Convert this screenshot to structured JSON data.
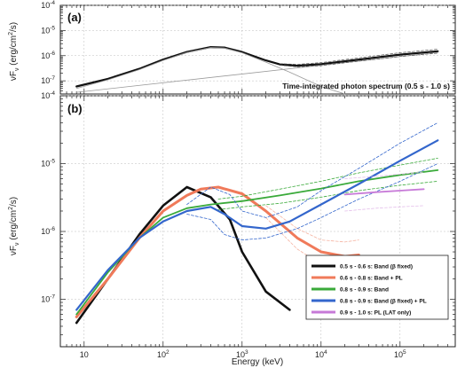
{
  "chart_data": [
    {
      "panel_label": "(a)",
      "type": "line",
      "title": "",
      "annotation": "Time-integrated photon spectrum (0.5 s - 1.0 s)",
      "xscale": "log",
      "yscale": "log",
      "xlim": [
        5,
        500000
      ],
      "ylim": [
        3e-08,
        0.0001
      ],
      "ylabel_parts": [
        "νF",
        "ν",
        " (erg/cm",
        "2",
        "/s)"
      ],
      "y_ticks": [
        {
          "value": 1e-07,
          "base": "10",
          "exp": "-7"
        },
        {
          "value": 1e-06,
          "base": "10",
          "exp": "-6"
        },
        {
          "value": 1e-05,
          "base": "10",
          "exp": "-5"
        },
        {
          "value": 0.0001,
          "base": "10",
          "exp": "-4"
        }
      ],
      "series": [
        {
          "role": "model",
          "color": "#111111",
          "width": 2.2,
          "dashed": false,
          "x": [
            8,
            20,
            50,
            100,
            200,
            400,
            600,
            1000,
            2000,
            3000,
            5000,
            10000,
            20000,
            50000,
            100000,
            300000
          ],
          "y": [
            6e-08,
            1.2e-07,
            3e-07,
            7e-07,
            1.4e-06,
            2.2e-06,
            2.1e-06,
            1.4e-06,
            6.5e-07,
            4.5e-07,
            4e-07,
            4.6e-07,
            6e-07,
            8.5e-07,
            1.1e-06,
            1.5e-06
          ]
        },
        {
          "role": "component",
          "color": "#9a9a9a",
          "width": 0.8,
          "dashed": false,
          "x": [
            8,
            20,
            50,
            100,
            200,
            400,
            600,
            1000,
            2000,
            4000,
            10000,
            20000
          ],
          "y": [
            5e-08,
            1.1e-07,
            2.8e-07,
            6.5e-07,
            1.35e-06,
            2.1e-06,
            2e-06,
            1.3e-06,
            5.5e-07,
            2.2e-07,
            6e-08,
            3e-08
          ]
        },
        {
          "role": "component",
          "color": "#9a9a9a",
          "width": 0.8,
          "dashed": false,
          "x": [
            8,
            300000
          ],
          "y": [
            3.5e-08,
            1.35e-06
          ]
        },
        {
          "role": "confidence",
          "color": "#555555",
          "width": 0.7,
          "dashed": true,
          "x": [
            3000,
            5000,
            10000,
            20000,
            50000,
            100000,
            300000
          ],
          "y": [
            4.8e-07,
            4.5e-07,
            5.3e-07,
            7e-07,
            1e-06,
            1.3e-06,
            1.8e-06
          ]
        },
        {
          "role": "confidence",
          "color": "#555555",
          "width": 0.7,
          "dashed": true,
          "x": [
            3000,
            5000,
            10000,
            20000,
            50000,
            100000,
            300000
          ],
          "y": [
            4.2e-07,
            3.6e-07,
            4e-07,
            5.2e-07,
            7.2e-07,
            9.3e-07,
            1.25e-06
          ]
        }
      ]
    },
    {
      "panel_label": "(b)",
      "type": "line",
      "title": "",
      "xlabel": "Energy (keV)",
      "xscale": "log",
      "yscale": "log",
      "xlim": [
        5,
        500000
      ],
      "ylim": [
        2e-08,
        0.0001
      ],
      "ylabel_parts": [
        "νF",
        "ν",
        " (erg/cm",
        "2",
        "/s)"
      ],
      "x_ticks": [
        {
          "value": 10,
          "base": "10",
          "exp": ""
        },
        {
          "value": 100,
          "base": "10",
          "exp": "2"
        },
        {
          "value": 1000,
          "base": "10",
          "exp": "3"
        },
        {
          "value": 10000,
          "base": "10",
          "exp": "4"
        },
        {
          "value": 100000,
          "base": "10",
          "exp": "5"
        }
      ],
      "y_ticks": [
        {
          "value": 1e-07,
          "base": "10",
          "exp": "-7"
        },
        {
          "value": 1e-06,
          "base": "10",
          "exp": "-6"
        },
        {
          "value": 1e-05,
          "base": "10",
          "exp": "-5"
        },
        {
          "value": 0.0001,
          "base": "10",
          "exp": "-4"
        }
      ],
      "legend": {
        "placement": "bottom-right",
        "entries": [
          {
            "label": "0.5 s - 0.6 s: Band (β fixed)",
            "color": "#111111"
          },
          {
            "label": "0.6 s - 0.8 s: Band + PL",
            "color": "#f07a5a"
          },
          {
            "label": "0.8 s - 0.9 s: Band",
            "color": "#3aaa3a"
          },
          {
            "label": "0.8 s - 0.9 s: Band (β fixed) + PL",
            "color": "#3366cc"
          },
          {
            "label": "0.9 s - 1.0 s: PL (LAT only)",
            "color": "#c77ad8"
          }
        ]
      },
      "series": [
        {
          "legend_index": 0,
          "color": "#111111",
          "width": 2.6,
          "dashed": false,
          "x": [
            8,
            20,
            50,
            100,
            200,
            400,
            700,
            1000,
            2000,
            4000
          ],
          "y": [
            4.5e-08,
            2e-07,
            9e-07,
            2.4e-06,
            4.5e-06,
            3.2e-06,
            1.5e-06,
            5e-07,
            1.3e-07,
            7e-08
          ]
        },
        {
          "legend_index": 1,
          "color": "#f07a5a",
          "width": 3.0,
          "dashed": false,
          "x": [
            8,
            20,
            50,
            100,
            200,
            300,
            500,
            1000,
            2000,
            5000,
            10000,
            20000,
            30000
          ],
          "y": [
            5.5e-08,
            2e-07,
            8e-07,
            2e-06,
            3.4e-06,
            4.2e-06,
            4.5e-06,
            3.6e-06,
            2e-06,
            8e-07,
            5e-07,
            4.3e-07,
            4.5e-07
          ]
        },
        {
          "legend_index": 1,
          "color": "#f5b3a1",
          "width": 0.8,
          "dashed": true,
          "x": [
            2000,
            5000,
            10000,
            20000,
            30000
          ],
          "y": [
            2.4e-06,
            1.1e-06,
            7.5e-07,
            7e-07,
            7.5e-07
          ]
        },
        {
          "legend_index": 1,
          "color": "#f5b3a1",
          "width": 0.8,
          "dashed": true,
          "x": [
            2000,
            5000,
            10000,
            20000,
            30000
          ],
          "y": [
            1.6e-06,
            5.5e-07,
            3.3e-07,
            2.7e-07,
            2.7e-07
          ]
        },
        {
          "legend_index": 2,
          "color": "#3aaa3a",
          "width": 1.8,
          "dashed": false,
          "x": [
            8,
            20,
            50,
            100,
            200,
            400,
            1000,
            3000,
            10000,
            30000,
            100000,
            300000
          ],
          "y": [
            6e-08,
            2.5e-07,
            8e-07,
            1.6e-06,
            2.2e-06,
            2.5e-06,
            2.8e-06,
            3.4e-06,
            4.3e-06,
            5.5e-06,
            6.8e-06,
            8e-06
          ]
        },
        {
          "legend_index": 2,
          "color": "#3aaa3a",
          "width": 0.8,
          "dashed": true,
          "x": [
            500,
            1000,
            3000,
            10000,
            30000,
            100000,
            300000
          ],
          "y": [
            3e-06,
            3.3e-06,
            4.2e-06,
            5.5e-06,
            7.3e-06,
            9.5e-06,
            1.2e-05
          ]
        },
        {
          "legend_index": 2,
          "color": "#3aaa3a",
          "width": 0.8,
          "dashed": true,
          "x": [
            500,
            1000,
            3000,
            10000,
            30000,
            100000,
            300000
          ],
          "y": [
            2.1e-06,
            2.3e-06,
            2.6e-06,
            3.2e-06,
            4e-06,
            4.8e-06,
            5.5e-06
          ]
        },
        {
          "legend_index": 3,
          "color": "#3366cc",
          "width": 2.2,
          "dashed": false,
          "x": [
            8,
            20,
            50,
            100,
            200,
            400,
            600,
            1000,
            2000,
            4000,
            10000,
            30000,
            100000,
            300000
          ],
          "y": [
            7e-08,
            2.7e-07,
            8e-07,
            1.4e-06,
            2e-06,
            2.3e-06,
            1.8e-06,
            1.2e-06,
            1.1e-06,
            1.4e-06,
            2.5e-06,
            5e-06,
            1.1e-05,
            2.2e-05
          ]
        },
        {
          "legend_index": 3,
          "color": "#3366cc",
          "width": 0.8,
          "dashed": true,
          "x": [
            200,
            400,
            700,
            1000,
            2000,
            5000,
            10000,
            30000,
            100000,
            300000
          ],
          "y": [
            2.5e-06,
            4.5e-06,
            3.5e-06,
            2e-06,
            1.6e-06,
            2.3e-06,
            4e-06,
            8.5e-06,
            2e-05,
            4e-05
          ]
        },
        {
          "legend_index": 3,
          "color": "#3366cc",
          "width": 0.8,
          "dashed": true,
          "x": [
            200,
            400,
            600,
            1000,
            2000,
            5000,
            10000,
            30000,
            100000,
            300000
          ],
          "y": [
            1.8e-06,
            1.5e-06,
            9e-07,
            7.5e-07,
            8e-07,
            1.1e-06,
            1.6e-06,
            3e-06,
            5.5e-06,
            1e-05
          ]
        },
        {
          "legend_index": 4,
          "color": "#c77ad8",
          "width": 1.8,
          "dashed": false,
          "x": [
            20000,
            50000,
            100000,
            200000
          ],
          "y": [
            3.5e-06,
            3.8e-06,
            4e-06,
            4.2e-06
          ]
        },
        {
          "legend_index": 4,
          "color": "#e3bdea",
          "width": 0.8,
          "dashed": true,
          "x": [
            20000,
            50000,
            100000,
            200000
          ],
          "y": [
            6e-06,
            6.5e-06,
            7e-06,
            7.5e-06
          ]
        },
        {
          "legend_index": 4,
          "color": "#e3bdea",
          "width": 0.8,
          "dashed": true,
          "x": [
            20000,
            50000,
            100000,
            200000
          ],
          "y": [
            2e-06,
            2.2e-06,
            2.3e-06,
            2.4e-06
          ]
        }
      ]
    }
  ]
}
